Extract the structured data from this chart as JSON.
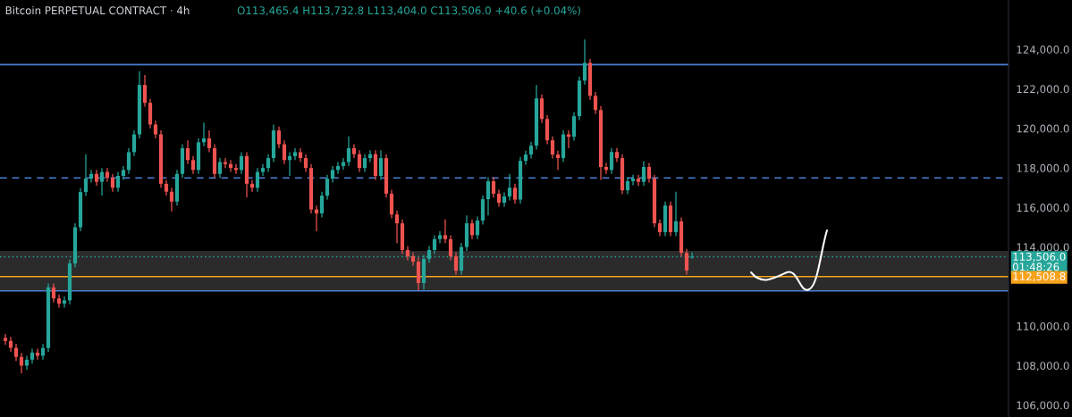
{
  "chart_data": {
    "type": "candlestick",
    "title": "Bitcoin PERPETUAL CONTRACT · 4h",
    "annotations": [
      "O113,465.4 H113,732.8 L113,404.0 C113,506.0 +40.6 (+0.04%)"
    ],
    "categories": [
      null,
      null,
      null,
      null,
      null,
      null,
      null,
      null,
      null,
      null,
      null,
      null,
      null,
      null,
      null,
      null,
      null,
      null,
      null,
      null,
      null,
      null,
      null,
      null,
      null,
      null,
      null,
      null,
      null,
      null,
      null,
      null,
      null,
      null,
      null,
      null,
      null,
      null,
      null,
      null,
      null,
      null,
      null,
      null,
      null,
      null,
      null,
      null,
      null,
      null,
      null,
      null,
      null,
      null,
      null,
      null,
      null,
      null,
      null,
      null,
      null,
      null,
      null,
      null,
      null,
      null,
      null,
      null,
      null,
      null,
      null,
      null,
      null,
      null,
      null,
      null,
      null,
      null,
      null,
      null,
      null,
      null,
      null,
      null,
      null,
      null,
      null,
      null,
      null,
      null,
      null,
      null,
      null,
      null,
      null,
      null,
      null,
      null,
      null,
      null,
      null,
      null,
      null,
      null,
      null,
      null,
      null,
      null,
      null,
      null,
      null,
      null,
      null,
      null,
      null,
      null,
      null,
      null,
      null,
      null,
      null,
      null,
      null,
      null,
      null,
      null,
      null,
      null,
      null,
      null,
      null,
      null,
      null,
      null,
      null,
      null,
      null,
      null,
      null,
      null,
      null,
      null,
      null,
      null,
      null,
      null,
      null,
      null,
      null,
      null,
      null,
      null,
      null,
      null,
      null,
      null,
      null,
      null,
      null,
      null,
      null,
      null,
      null,
      null,
      null,
      null,
      null,
      null,
      null,
      null,
      null,
      null,
      null,
      null,
      null,
      null,
      null,
      null,
      null,
      null,
      null,
      null,
      null,
      null,
      null,
      null,
      null
    ],
    "ohlc": [
      [
        109400,
        109600,
        109050,
        109250
      ],
      [
        109250,
        109450,
        108700,
        108900
      ],
      [
        108900,
        109100,
        108240,
        108440
      ],
      [
        108440,
        108640,
        107600,
        108000
      ],
      [
        108000,
        108500,
        107800,
        108300
      ],
      [
        108300,
        108860,
        108100,
        108660
      ],
      [
        108660,
        108860,
        108300,
        108500
      ],
      [
        108500,
        109090,
        108300,
        108890
      ],
      [
        108890,
        112160,
        108690,
        111960
      ],
      [
        111960,
        112160,
        111200,
        111400
      ],
      [
        111400,
        111600,
        110940,
        111140
      ],
      [
        111140,
        111500,
        110940,
        111300
      ],
      [
        111300,
        113370,
        111100,
        113170
      ],
      [
        113170,
        115200,
        112970,
        115000
      ],
      [
        115000,
        116980,
        114800,
        116780
      ],
      [
        116780,
        118700,
        116580,
        117460
      ],
      [
        117460,
        117900,
        117260,
        117700
      ],
      [
        117700,
        117900,
        117100,
        117300
      ],
      [
        117300,
        118000,
        116600,
        117800
      ],
      [
        117800,
        118000,
        117300,
        117500
      ],
      [
        117500,
        117700,
        116800,
        117000
      ],
      [
        117000,
        117800,
        116800,
        117600
      ],
      [
        117600,
        118100,
        117400,
        117900
      ],
      [
        117900,
        119000,
        117700,
        118800
      ],
      [
        118800,
        119900,
        118600,
        119700
      ],
      [
        119700,
        122900,
        119500,
        122200
      ],
      [
        122200,
        122700,
        121100,
        121300
      ],
      [
        121300,
        121500,
        120000,
        120200
      ],
      [
        120200,
        120400,
        119500,
        119700
      ],
      [
        119700,
        119900,
        117000,
        117200
      ],
      [
        117200,
        117400,
        116600,
        116800
      ],
      [
        116800,
        117000,
        115800,
        116300
      ],
      [
        116300,
        117900,
        116100,
        117700
      ],
      [
        117700,
        119200,
        117500,
        119000
      ],
      [
        119000,
        119400,
        118200,
        118400
      ],
      [
        118400,
        118600,
        117700,
        117900
      ],
      [
        117900,
        119500,
        117700,
        119300
      ],
      [
        119300,
        120300,
        119100,
        119500
      ],
      [
        119500,
        119900,
        118800,
        119000
      ],
      [
        119000,
        119200,
        117500,
        117700
      ],
      [
        117700,
        118500,
        117500,
        118300
      ],
      [
        118300,
        118500,
        118000,
        118200
      ],
      [
        118200,
        118400,
        117800,
        118000
      ],
      [
        118000,
        118200,
        117700,
        117900
      ],
      [
        117900,
        118800,
        117700,
        118600
      ],
      [
        118600,
        118800,
        116500,
        117200
      ],
      [
        117200,
        117400,
        116800,
        117000
      ],
      [
        117000,
        118000,
        116800,
        117800
      ],
      [
        117800,
        118200,
        117600,
        118000
      ],
      [
        118000,
        118700,
        117800,
        118500
      ],
      [
        118500,
        120200,
        118300,
        119900
      ],
      [
        119900,
        120100,
        119000,
        119200
      ],
      [
        119200,
        119400,
        118200,
        118400
      ],
      [
        118400,
        118800,
        117600,
        118600
      ],
      [
        118600,
        119000,
        118400,
        118800
      ],
      [
        118800,
        119000,
        118300,
        118500
      ],
      [
        118500,
        118700,
        117800,
        118000
      ],
      [
        118000,
        118200,
        115700,
        115900
      ],
      [
        115900,
        116100,
        114800,
        115700
      ],
      [
        115700,
        116800,
        115500,
        116600
      ],
      [
        116600,
        117660,
        116400,
        117460
      ],
      [
        117460,
        118100,
        117260,
        117900
      ],
      [
        117900,
        118300,
        117700,
        118100
      ],
      [
        118100,
        118500,
        117900,
        118300
      ],
      [
        118300,
        119600,
        118100,
        119000
      ],
      [
        119000,
        119200,
        118500,
        118700
      ],
      [
        118700,
        118900,
        117800,
        118000
      ],
      [
        118000,
        118700,
        117800,
        118500
      ],
      [
        118500,
        118900,
        118300,
        118700
      ],
      [
        118700,
        118900,
        117400,
        117600
      ],
      [
        117600,
        118900,
        117400,
        118500
      ],
      [
        118500,
        118700,
        116500,
        116700
      ],
      [
        116700,
        116900,
        115450,
        115650
      ],
      [
        115650,
        115850,
        114200,
        115200
      ],
      [
        115200,
        115400,
        113650,
        113850
      ],
      [
        113850,
        114050,
        113330,
        113530
      ],
      [
        113530,
        113730,
        113060,
        113260
      ],
      [
        113260,
        113460,
        111800,
        112180
      ],
      [
        112180,
        113600,
        111850,
        113400
      ],
      [
        113400,
        114050,
        113200,
        113850
      ],
      [
        113850,
        114600,
        113650,
        114400
      ],
      [
        114400,
        114800,
        114200,
        114600
      ],
      [
        114600,
        115400,
        114200,
        114400
      ],
      [
        114400,
        114600,
        113330,
        113530
      ],
      [
        113530,
        113730,
        112600,
        112800
      ],
      [
        112800,
        114200,
        112600,
        114000
      ],
      [
        114000,
        115600,
        113800,
        115200
      ],
      [
        115200,
        115400,
        114400,
        114600
      ],
      [
        114600,
        115540,
        114400,
        115340
      ],
      [
        115340,
        116620,
        115140,
        116420
      ],
      [
        116420,
        117530,
        115600,
        117330
      ],
      [
        117330,
        117530,
        116500,
        116700
      ],
      [
        116700,
        116900,
        116040,
        116240
      ],
      [
        116240,
        116760,
        116040,
        116560
      ],
      [
        116560,
        117700,
        116360,
        117000
      ],
      [
        117000,
        117200,
        116200,
        116400
      ],
      [
        116400,
        118560,
        116200,
        118360
      ],
      [
        118360,
        118880,
        118160,
        118680
      ],
      [
        118680,
        119330,
        118480,
        119130
      ],
      [
        119130,
        122200,
        118930,
        121520
      ],
      [
        121520,
        121720,
        120280,
        120480
      ],
      [
        120480,
        120680,
        119200,
        119400
      ],
      [
        119400,
        119600,
        118480,
        118680
      ],
      [
        118680,
        118880,
        117900,
        118500
      ],
      [
        118500,
        119900,
        118300,
        119700
      ],
      [
        119700,
        119900,
        119000,
        119580
      ],
      [
        119580,
        120820,
        119380,
        120620
      ],
      [
        120620,
        122620,
        120420,
        122420
      ],
      [
        122420,
        124500,
        122220,
        123320
      ],
      [
        123320,
        123520,
        121450,
        121650
      ],
      [
        121650,
        121850,
        120730,
        120930
      ],
      [
        120930,
        121130,
        117400,
        118050
      ],
      [
        118050,
        118250,
        117700,
        117900
      ],
      [
        117900,
        119010,
        117700,
        118810
      ],
      [
        118810,
        119010,
        118300,
        118500
      ],
      [
        118500,
        118700,
        116670,
        116870
      ],
      [
        116870,
        117530,
        116670,
        117330
      ],
      [
        117330,
        117660,
        117130,
        117460
      ],
      [
        117460,
        117660,
        117100,
        117300
      ],
      [
        117300,
        118350,
        117100,
        118050
      ],
      [
        118050,
        118250,
        117260,
        117460
      ],
      [
        117460,
        117660,
        115000,
        115200
      ],
      [
        115200,
        115400,
        114550,
        114750
      ],
      [
        114750,
        116300,
        114550,
        116100
      ],
      [
        116100,
        116300,
        114550,
        114750
      ],
      [
        114750,
        116800,
        114550,
        115300
      ],
      [
        115300,
        115500,
        113510,
        113710
      ],
      [
        113710,
        113910,
        112610,
        112810
      ],
      [
        113465.4,
        113732.8,
        113404.0,
        113506.0
      ],
      null,
      null,
      null,
      null,
      null,
      null,
      null,
      null,
      null,
      null,
      null,
      null,
      null,
      null,
      null,
      null,
      null,
      null,
      null,
      null,
      null,
      null,
      null,
      null,
      null,
      null,
      null,
      null,
      null,
      null,
      null,
      null,
      null,
      null,
      null,
      null,
      null,
      null,
      null,
      null,
      null,
      null,
      null,
      null,
      null,
      null,
      null,
      null,
      null,
      null,
      null,
      null,
      null,
      null,
      null,
      null,
      null,
      null
    ],
    "colors": [
      "#ef5350",
      "#ef5350",
      "#ef5350",
      "#ef5350",
      "#26a69a",
      "#26a69a",
      "#ef5350",
      "#26a69a",
      "#26a69a",
      "#ef5350",
      "#ef5350",
      "#26a69a",
      "#26a69a",
      "#26a69a",
      "#26a69a",
      "#26a69a",
      "#26a69a",
      "#ef5350",
      "#26a69a",
      "#ef5350",
      "#ef5350",
      "#26a69a",
      "#26a69a",
      "#26a69a",
      "#26a69a",
      "#26a69a",
      "#ef5350",
      "#ef5350",
      "#ef5350",
      "#ef5350",
      "#ef5350",
      "#ef5350",
      "#26a69a",
      "#26a69a",
      "#ef5350",
      "#ef5350",
      "#26a69a",
      "#26a69a",
      "#ef5350",
      "#ef5350",
      "#26a69a",
      "#ef5350",
      "#ef5350",
      "#ef5350",
      "#26a69a",
      "#ef5350",
      "#ef5350",
      "#26a69a",
      "#26a69a",
      "#26a69a",
      "#26a69a",
      "#ef5350",
      "#ef5350",
      "#26a69a",
      "#26a69a",
      "#ef5350",
      "#ef5350",
      "#ef5350",
      "#ef5350",
      "#26a69a",
      "#26a69a",
      "#26a69a",
      "#26a69a",
      "#26a69a",
      "#26a69a",
      "#ef5350",
      "#ef5350",
      "#26a69a",
      "#26a69a",
      "#ef5350",
      "#26a69a",
      "#ef5350",
      "#ef5350",
      "#ef5350",
      "#ef5350",
      "#ef5350",
      "#ef5350",
      "#ef5350",
      "#26a69a",
      "#26a69a",
      "#26a69a",
      "#26a69a",
      "#ef5350",
      "#ef5350",
      "#ef5350",
      "#26a69a",
      "#26a69a",
      "#ef5350",
      "#26a69a",
      "#26a69a",
      "#26a69a",
      "#ef5350",
      "#ef5350",
      "#26a69a",
      "#26a69a",
      "#ef5350",
      "#26a69a",
      "#26a69a",
      "#26a69a",
      "#26a69a",
      "#ef5350",
      "#ef5350",
      "#ef5350",
      "#ef5350",
      "#26a69a",
      "#ef5350",
      "#26a69a",
      "#26a69a",
      "#26a69a",
      "#ef5350",
      "#ef5350",
      "#ef5350",
      "#ef5350",
      "#26a69a",
      "#ef5350",
      "#ef5350",
      "#26a69a",
      "#26a69a",
      "#ef5350",
      "#26a69a",
      "#ef5350",
      "#ef5350",
      "#ef5350",
      "#26a69a",
      "#ef5350",
      "#26a69a",
      "#ef5350",
      "#ef5350",
      "#26a69a",
      null,
      null,
      null,
      null,
      null,
      null,
      null,
      null,
      null,
      null,
      null,
      null,
      null,
      null,
      null,
      null,
      null,
      null,
      null,
      null,
      null,
      null,
      null,
      null,
      null,
      null,
      null,
      null,
      null,
      null,
      null,
      null,
      null,
      null,
      null,
      null,
      null,
      null,
      null,
      null,
      null,
      null,
      null,
      null,
      null,
      null,
      null,
      null,
      null,
      null,
      null,
      null,
      null,
      null,
      null,
      null,
      null,
      null
    ],
    "ylim": [
      105400,
      126500
    ],
    "yticks": [
      {
        "value": 106000,
        "label": "106,000.0"
      },
      {
        "value": 108000,
        "label": "108,000.0"
      },
      {
        "value": 110000,
        "label": "110,000.0"
      },
      {
        "value": 114000,
        "label": "114,000.0"
      },
      {
        "value": 116000,
        "label": "116,000.0"
      },
      {
        "value": 118000,
        "label": "118,000.0"
      },
      {
        "value": 120000,
        "label": "120,000.0"
      },
      {
        "value": 122000,
        "label": "122,000.0"
      },
      {
        "value": 124000,
        "label": "124,000.0"
      }
    ],
    "ref_lines": [
      {
        "axis": "y",
        "value": 123230,
        "color": "#4a7fd4",
        "line_style": "solid"
      },
      {
        "axis": "y",
        "value": 117500,
        "color": "#4a7fd4",
        "line_style": "dashed"
      },
      {
        "axis": "y",
        "value": 111780,
        "color": "#4a7fd4",
        "line_style": "solid"
      },
      {
        "axis": "y",
        "value": 113506.0,
        "label": "113,506.0\n01:48:26",
        "color": "#26a69a",
        "line_style": "dotted"
      },
      {
        "axis": "y",
        "value": 112508.8,
        "label": "112,508.8",
        "color": "#f7a21b",
        "line_style": "solid"
      }
    ],
    "bands": [
      {
        "axis": "y",
        "from": 111780,
        "to": 113800,
        "color": "#2b2b2b"
      }
    ],
    "grid": false
  }
}
